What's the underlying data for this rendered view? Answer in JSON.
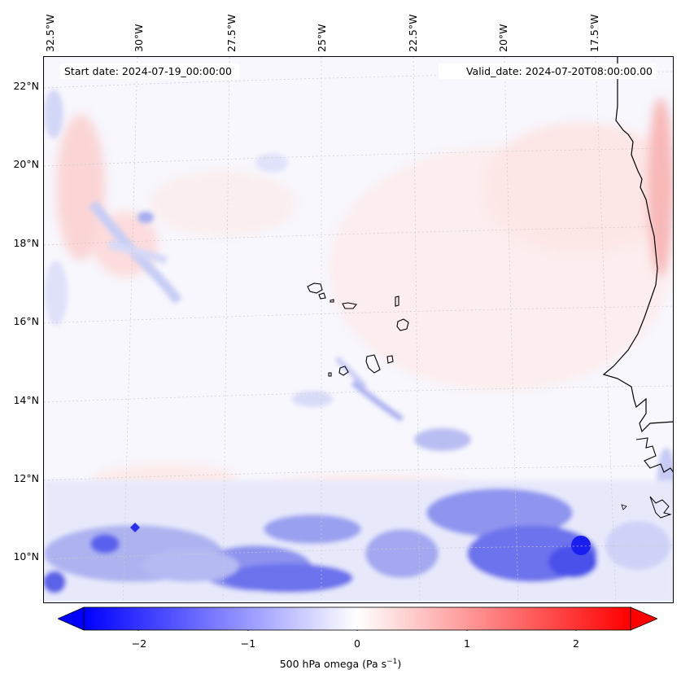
{
  "header": {
    "start_date": "Start date: 2024-07-19_00:00:00",
    "valid_date": "Valid_date: 2024-07-20T08:00:00.00"
  },
  "map": {
    "longitude_labels": [
      "32.5°W",
      "30°W",
      "27.5°W",
      "25°W",
      "22.5°W",
      "20°W",
      "17.5°W"
    ],
    "latitude_labels": [
      "22°N",
      "20°N",
      "18°N",
      "16°N",
      "14°N",
      "12°N",
      "10°N"
    ],
    "field": "500 hPa omega",
    "features": [
      "west-africa-coastline",
      "cape-verde-islands"
    ]
  },
  "colorbar": {
    "ticks": [
      "−2",
      "−1",
      "0",
      "1",
      "2"
    ],
    "label_prefix": "500 hPa omega (Pa s",
    "label_exp": "−1",
    "label_suffix": ")",
    "min_color": "#0000ff",
    "mid_color": "#ffffff",
    "max_color": "#ff0000",
    "extend": "both"
  }
}
